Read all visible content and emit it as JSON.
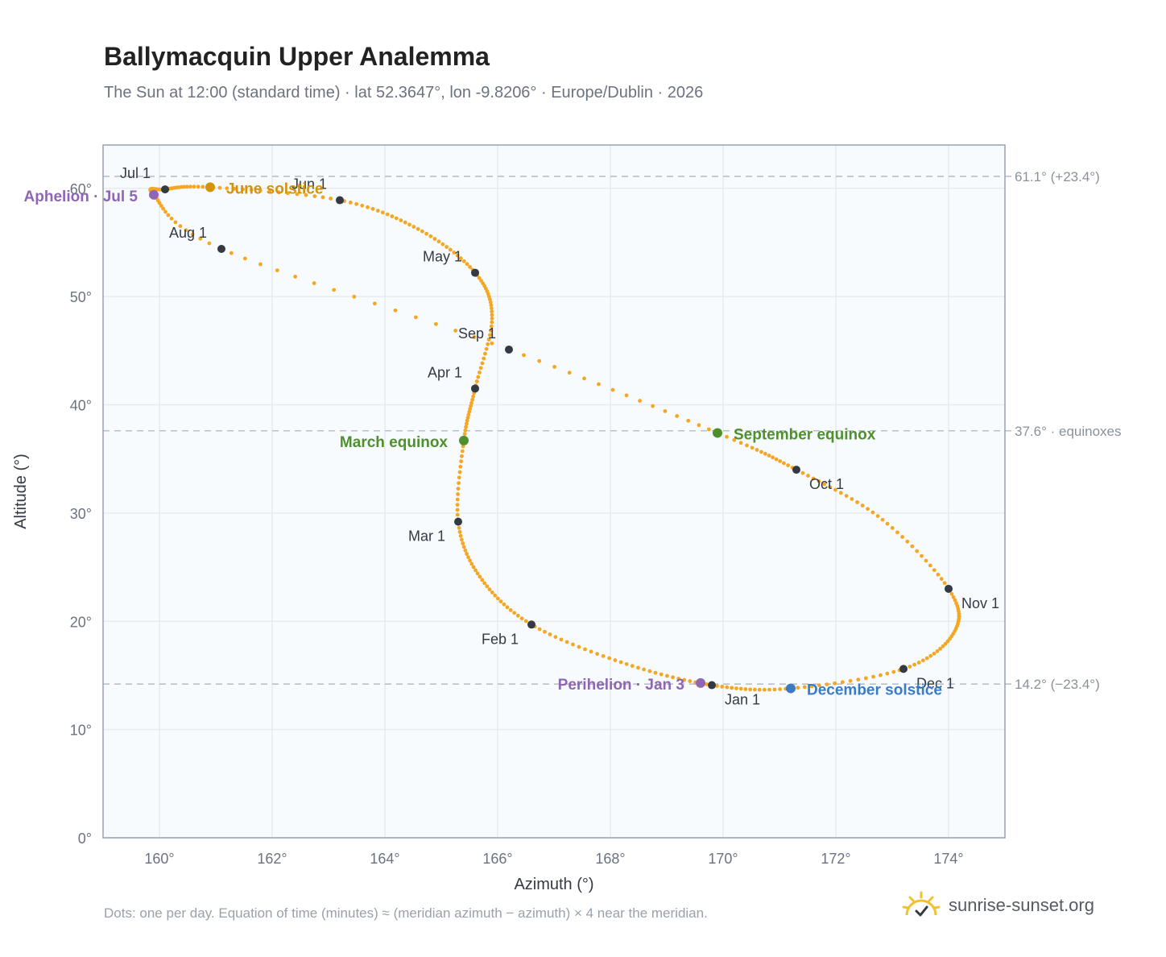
{
  "header": {
    "title": "Ballymacquin Upper Analemma",
    "subtitle": "The Sun at 12:00 (standard time) · lat 52.3647°, lon -9.8206° · Europe/Dublin · 2026"
  },
  "footer": {
    "note": "Dots: one per day. Equation of time (minutes) ≈ (meridian azimuth − azimuth) × 4 near the meridian.",
    "brand": "sunrise-sunset.org"
  },
  "colors": {
    "path": "#f5a623",
    "month_marker": "#333a44",
    "solstice_june": "#d4930a",
    "solstice_december": "#3a7bc8",
    "equinox": "#4e8f2e",
    "apsis": "#8e66b5",
    "reference_line": "#b8c0c8",
    "plot_background": "#f8fbfd",
    "grid": "#e6ebf0"
  },
  "chart_data": {
    "type": "scatter",
    "xlabel": "Azimuth (°)",
    "ylabel": "Altitude (°)",
    "xlim": [
      159,
      175
    ],
    "ylim": [
      0,
      64
    ],
    "x_ticks": [
      160,
      162,
      164,
      166,
      168,
      170,
      172,
      174
    ],
    "y_ticks": [
      0,
      10,
      20,
      30,
      40,
      50,
      60
    ],
    "x_tick_labels": [
      "160°",
      "162°",
      "164°",
      "166°",
      "168°",
      "170°",
      "172°",
      "174°"
    ],
    "y_tick_labels": [
      "0°",
      "10°",
      "20°",
      "30°",
      "40°",
      "50°",
      "60°"
    ],
    "grid": true,
    "reference_lines": [
      {
        "altitude": 61.1,
        "label": "61.1° (+23.4°)"
      },
      {
        "altitude": 37.6,
        "label": "37.6° · equinoxes"
      },
      {
        "altitude": 14.2,
        "label": "14.2° (−23.4°)"
      }
    ],
    "month_markers": [
      {
        "label": "Jan 1",
        "azimuth": 169.8,
        "altitude": 14.1
      },
      {
        "label": "Feb 1",
        "azimuth": 166.6,
        "altitude": 19.7
      },
      {
        "label": "Mar 1",
        "azimuth": 165.3,
        "altitude": 29.2
      },
      {
        "label": "Apr 1",
        "azimuth": 165.6,
        "altitude": 41.5
      },
      {
        "label": "May 1",
        "azimuth": 165.6,
        "altitude": 52.2
      },
      {
        "label": "Jun 1",
        "azimuth": 163.2,
        "altitude": 58.9
      },
      {
        "label": "Jul 1",
        "azimuth": 160.1,
        "altitude": 59.9
      },
      {
        "label": "Aug 1",
        "azimuth": 161.1,
        "altitude": 54.4
      },
      {
        "label": "Sep 1",
        "azimuth": 166.2,
        "altitude": 45.1
      },
      {
        "label": "Oct 1",
        "azimuth": 171.3,
        "altitude": 34.0
      },
      {
        "label": "Nov 1",
        "azimuth": 174.0,
        "altitude": 23.0
      },
      {
        "label": "Dec 1",
        "azimuth": 173.2,
        "altitude": 15.6
      }
    ],
    "events": [
      {
        "label": "June solstice",
        "azimuth": 160.9,
        "altitude": 60.1,
        "kind": "solstice_june"
      },
      {
        "label": "December solstice",
        "azimuth": 171.2,
        "altitude": 13.8,
        "kind": "solstice_december"
      },
      {
        "label": "March equinox",
        "azimuth": 165.4,
        "altitude": 36.7,
        "kind": "equinox"
      },
      {
        "label": "September equinox",
        "azimuth": 169.9,
        "altitude": 37.4,
        "kind": "equinox"
      },
      {
        "label": "Aphelion · Jul 5",
        "azimuth": 159.9,
        "altitude": 59.4,
        "kind": "apsis"
      },
      {
        "label": "Perihelion · Jan 3",
        "azimuth": 169.6,
        "altitude": 14.3,
        "kind": "apsis"
      }
    ],
    "daily_path_anchors": [
      [
        169.8,
        14.1
      ],
      [
        168.2,
        16.2
      ],
      [
        166.6,
        19.7
      ],
      [
        165.7,
        24.0
      ],
      [
        165.3,
        29.2
      ],
      [
        165.4,
        36.7
      ],
      [
        165.6,
        41.5
      ],
      [
        165.9,
        48.0
      ],
      [
        165.6,
        52.2
      ],
      [
        164.6,
        56.2
      ],
      [
        163.2,
        58.9
      ],
      [
        160.9,
        60.1
      ],
      [
        160.1,
        59.9
      ],
      [
        159.9,
        59.4
      ],
      [
        161.1,
        54.4
      ],
      [
        166.2,
        45.1
      ],
      [
        169.9,
        37.4
      ],
      [
        171.3,
        34.0
      ],
      [
        172.8,
        29.5
      ],
      [
        174.0,
        23.0
      ],
      [
        174.1,
        19.0
      ],
      [
        173.2,
        15.6
      ],
      [
        171.2,
        13.8
      ],
      [
        169.8,
        14.1
      ]
    ]
  }
}
